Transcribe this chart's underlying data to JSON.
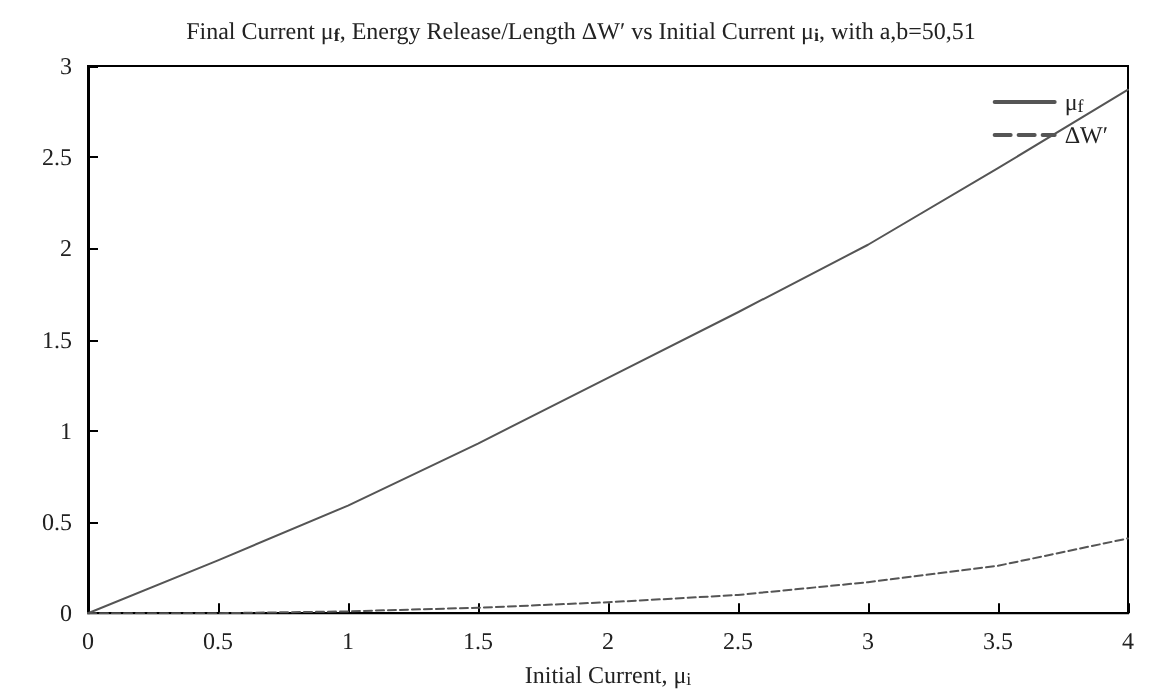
{
  "chart_data": {
    "type": "line",
    "title": "Final Current μ$_{f}$, Energy Release/Length ΔW′ vs Initial Current μ$_{i}$, with a,b=50,51",
    "xlabel": "Initial Current, μ$_{i}$",
    "x": [
      0,
      0.5,
      1,
      1.5,
      2,
      2.5,
      3,
      3.5,
      4
    ],
    "series": [
      {
        "name": "μ$_{f}$",
        "color": "#555555",
        "line_style": "solid",
        "values": [
          0,
          0.29,
          0.59,
          0.93,
          1.29,
          1.65,
          2.02,
          2.44,
          2.87
        ]
      },
      {
        "name": "ΔW′",
        "color": "#555555",
        "line_style": "dashed",
        "values": [
          0,
          0,
          0.01,
          0.03,
          0.06,
          0.1,
          0.17,
          0.26,
          0.41
        ]
      }
    ],
    "xlim": [
      0,
      4
    ],
    "xticks": [
      0,
      0.5,
      1,
      1.5,
      2,
      2.5,
      3,
      3.5,
      4
    ],
    "ylim": [
      0,
      3
    ],
    "yticks": [
      0,
      0.5,
      1,
      1.5,
      2,
      2.5,
      3
    ],
    "grid": false,
    "legend": "top right",
    "marker": "none"
  }
}
